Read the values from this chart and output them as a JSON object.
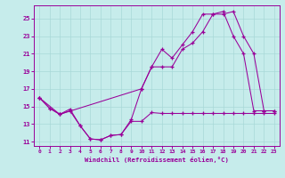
{
  "xlabel": "Windchill (Refroidissement éolien,°C)",
  "bg_color": "#c6eceb",
  "line_color": "#990099",
  "grid_color": "#a8d8d8",
  "xmin": 0,
  "xmax": 23,
  "ymin": 10.5,
  "ymax": 26.5,
  "yticks": [
    11,
    13,
    15,
    17,
    19,
    21,
    23,
    25
  ],
  "xticks": [
    0,
    1,
    2,
    3,
    4,
    5,
    6,
    7,
    8,
    9,
    10,
    11,
    12,
    13,
    14,
    15,
    16,
    17,
    18,
    19,
    20,
    21,
    22,
    23
  ],
  "series1": {
    "x": [
      0,
      1,
      2,
      3,
      4,
      5,
      6,
      7,
      8,
      9,
      10,
      11,
      12,
      13,
      14,
      15,
      16,
      17,
      18,
      19,
      20,
      21,
      22,
      23
    ],
    "y": [
      16.0,
      14.8,
      14.1,
      14.7,
      12.8,
      11.3,
      11.2,
      11.7,
      11.8,
      13.3,
      13.3,
      14.3,
      14.2,
      14.2,
      14.2,
      14.2,
      14.2,
      14.2,
      14.2,
      14.2,
      14.2,
      14.2,
      14.2,
      14.2
    ]
  },
  "series2": {
    "x": [
      0,
      1,
      2,
      3,
      4,
      5,
      6,
      7,
      8,
      9,
      10,
      11,
      12,
      13,
      14,
      15,
      16,
      17,
      18,
      19,
      20,
      21,
      22,
      23
    ],
    "y": [
      16.0,
      14.8,
      14.1,
      14.5,
      12.8,
      11.3,
      11.2,
      11.7,
      11.8,
      13.5,
      17.0,
      19.5,
      19.5,
      19.5,
      21.5,
      22.2,
      23.5,
      25.5,
      25.5,
      25.8,
      23.0,
      21.0,
      14.5,
      14.5
    ]
  },
  "series3": {
    "x": [
      0,
      2,
      10,
      11,
      12,
      13,
      14,
      15,
      16,
      17,
      18,
      19,
      20,
      21,
      22,
      23
    ],
    "y": [
      16.0,
      14.1,
      17.0,
      19.5,
      21.5,
      20.5,
      22.0,
      23.5,
      25.5,
      25.5,
      25.8,
      23.0,
      21.0,
      14.5,
      14.5,
      14.5
    ]
  }
}
